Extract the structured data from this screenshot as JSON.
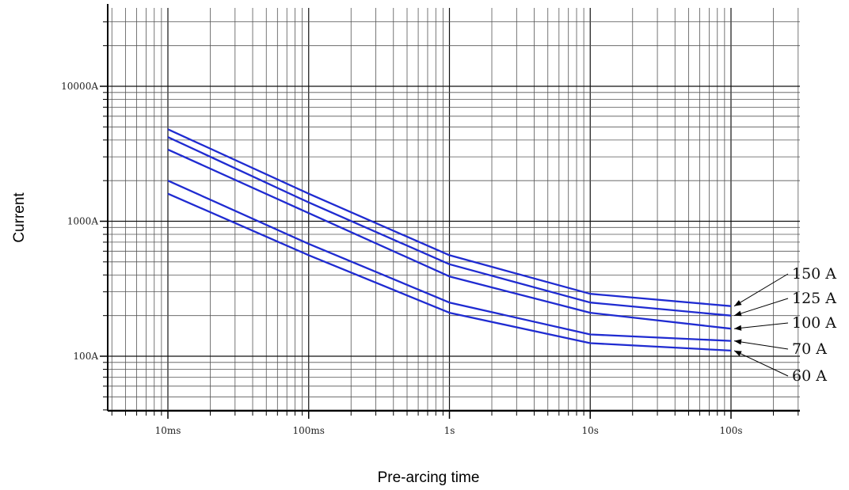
{
  "chart_data": {
    "type": "line",
    "xlabel": "Pre-arcing time",
    "ylabel": "Current",
    "x_scale": "log",
    "y_scale": "log",
    "xlim": [
      0.0045,
      250
    ],
    "ylim": [
      40,
      35000
    ],
    "grid": true,
    "x_ticks": [
      {
        "value": 0.01,
        "label": "10ms"
      },
      {
        "value": 0.1,
        "label": "100ms"
      },
      {
        "value": 1,
        "label": "1s"
      },
      {
        "value": 10,
        "label": "10s"
      },
      {
        "value": 100,
        "label": "100s"
      }
    ],
    "y_ticks": [
      {
        "value": 100,
        "label": "100A"
      },
      {
        "value": 1000,
        "label": "1000A"
      },
      {
        "value": 10000,
        "label": "10000A"
      }
    ],
    "series": [
      {
        "name": "150 A",
        "x": [
          0.01,
          0.1,
          1,
          10,
          100
        ],
        "y": [
          4800,
          1600,
          560,
          290,
          235
        ]
      },
      {
        "name": "125 A",
        "x": [
          0.01,
          0.1,
          1,
          10,
          100
        ],
        "y": [
          4200,
          1380,
          480,
          250,
          200
        ]
      },
      {
        "name": "100 A",
        "x": [
          0.01,
          0.1,
          1,
          10,
          100
        ],
        "y": [
          3400,
          1150,
          390,
          210,
          160
        ]
      },
      {
        "name": "70 A",
        "x": [
          0.01,
          0.1,
          1,
          10,
          100
        ],
        "y": [
          2000,
          680,
          250,
          145,
          130
        ]
      },
      {
        "name": "60 A",
        "x": [
          0.01,
          0.1,
          1,
          10,
          100
        ],
        "y": [
          1600,
          560,
          210,
          125,
          110
        ]
      }
    ],
    "line_color": "#1f2bd1"
  }
}
